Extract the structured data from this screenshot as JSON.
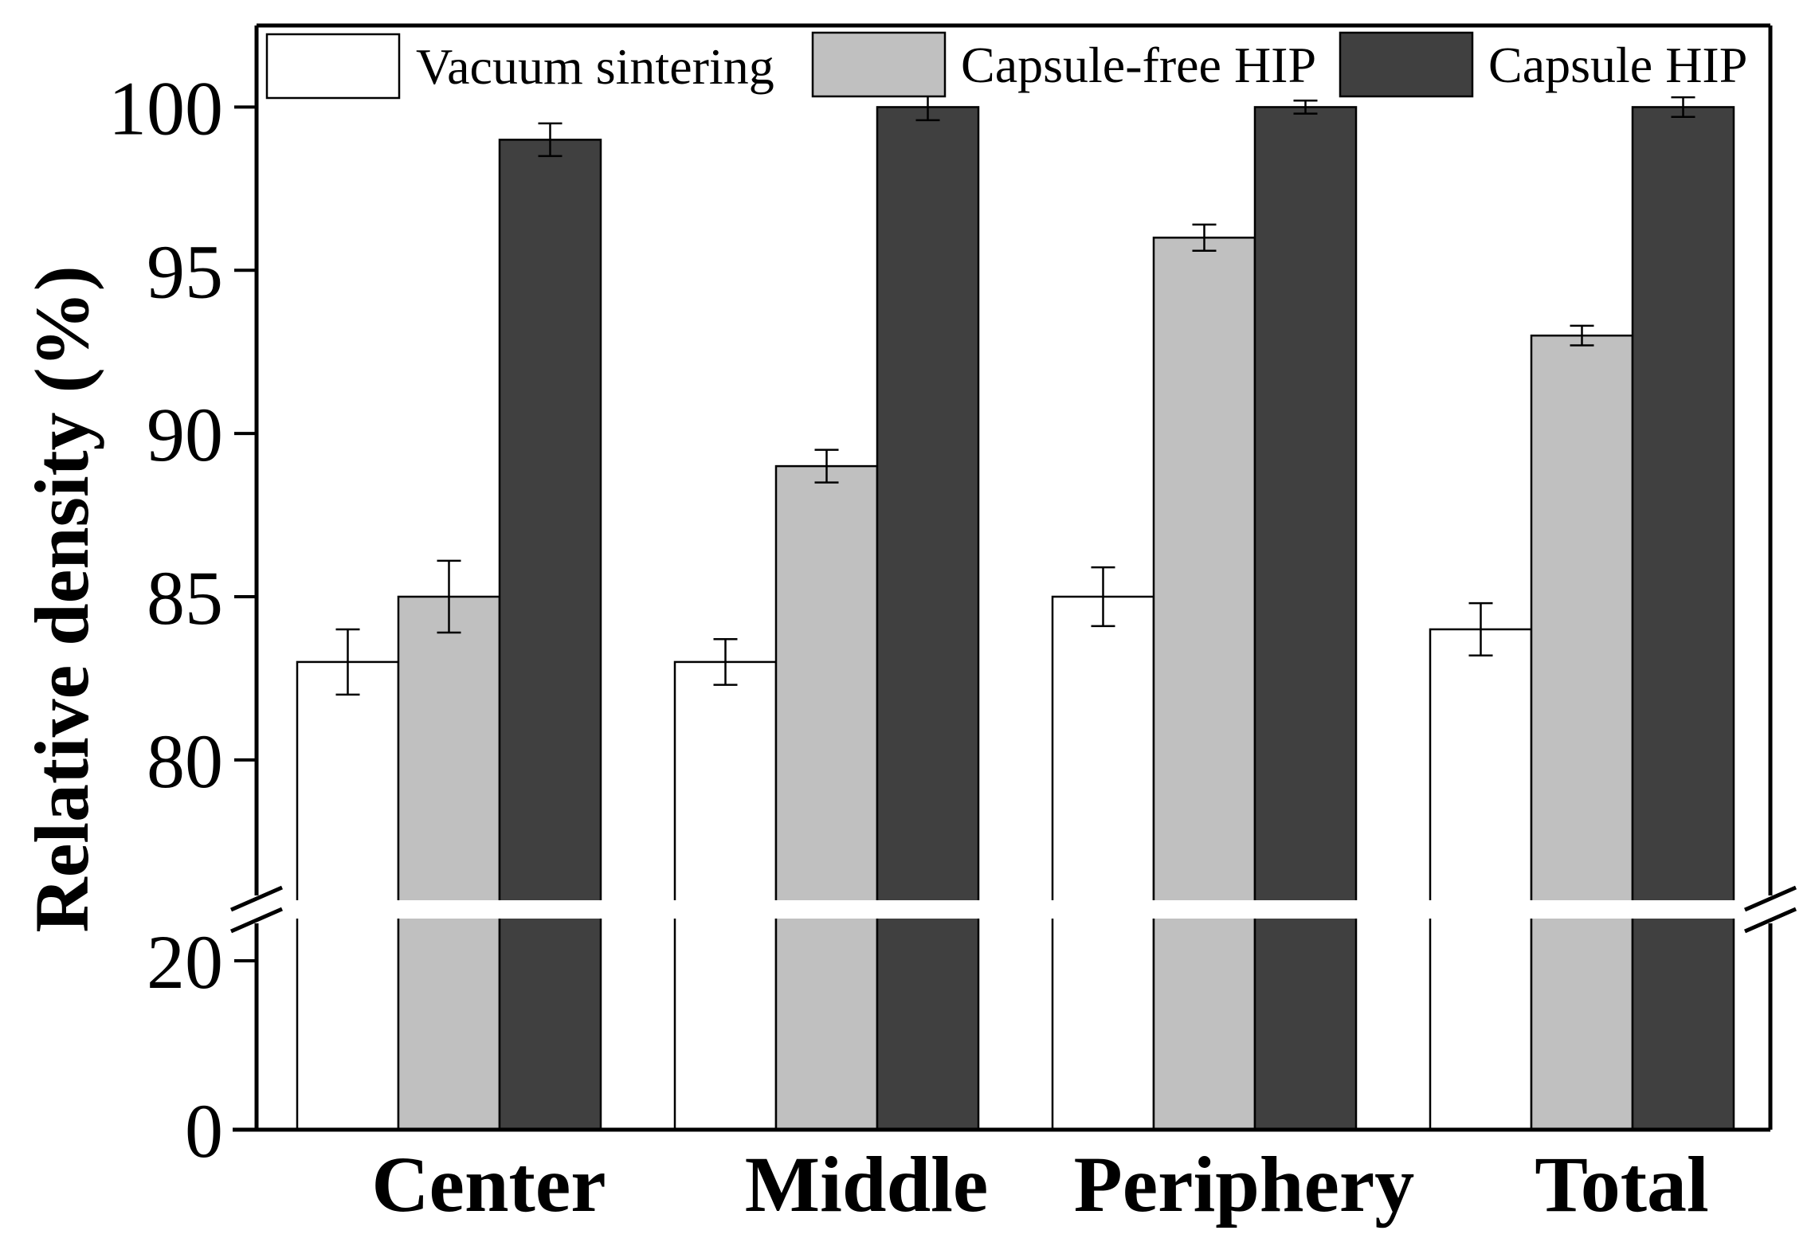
{
  "chart_data": {
    "type": "bar",
    "title": "",
    "xlabel": "",
    "ylabel": "Relative density (%)",
    "categories": [
      "Center",
      "Middle",
      "Periphery",
      "Total"
    ],
    "series": [
      {
        "name": "Vacuum sintering",
        "color": "#ffffff",
        "values": [
          83,
          83,
          85,
          84
        ],
        "errors": [
          1.0,
          0.7,
          0.9,
          0.8
        ]
      },
      {
        "name": "Capsule-free HIP",
        "color": "#c0c0c0",
        "values": [
          85,
          89,
          96,
          93
        ],
        "errors": [
          1.1,
          0.5,
          0.4,
          0.3
        ]
      },
      {
        "name": "Capsule HIP",
        "color": "#404040",
        "values": [
          99,
          100,
          100,
          100
        ],
        "errors": [
          0.5,
          0.4,
          0.2,
          0.3
        ]
      }
    ],
    "y_axis": {
      "broken": true,
      "lower_segment": {
        "range": [
          0,
          25
        ],
        "ticks": [
          "0",
          "20"
        ]
      },
      "upper_segment": {
        "range": [
          75.7,
          102.5
        ],
        "ticks": [
          "80",
          "85",
          "90",
          "95",
          "100"
        ]
      }
    },
    "legend": {
      "placement": "top",
      "orientation": "horizontal"
    },
    "grid": false
  }
}
